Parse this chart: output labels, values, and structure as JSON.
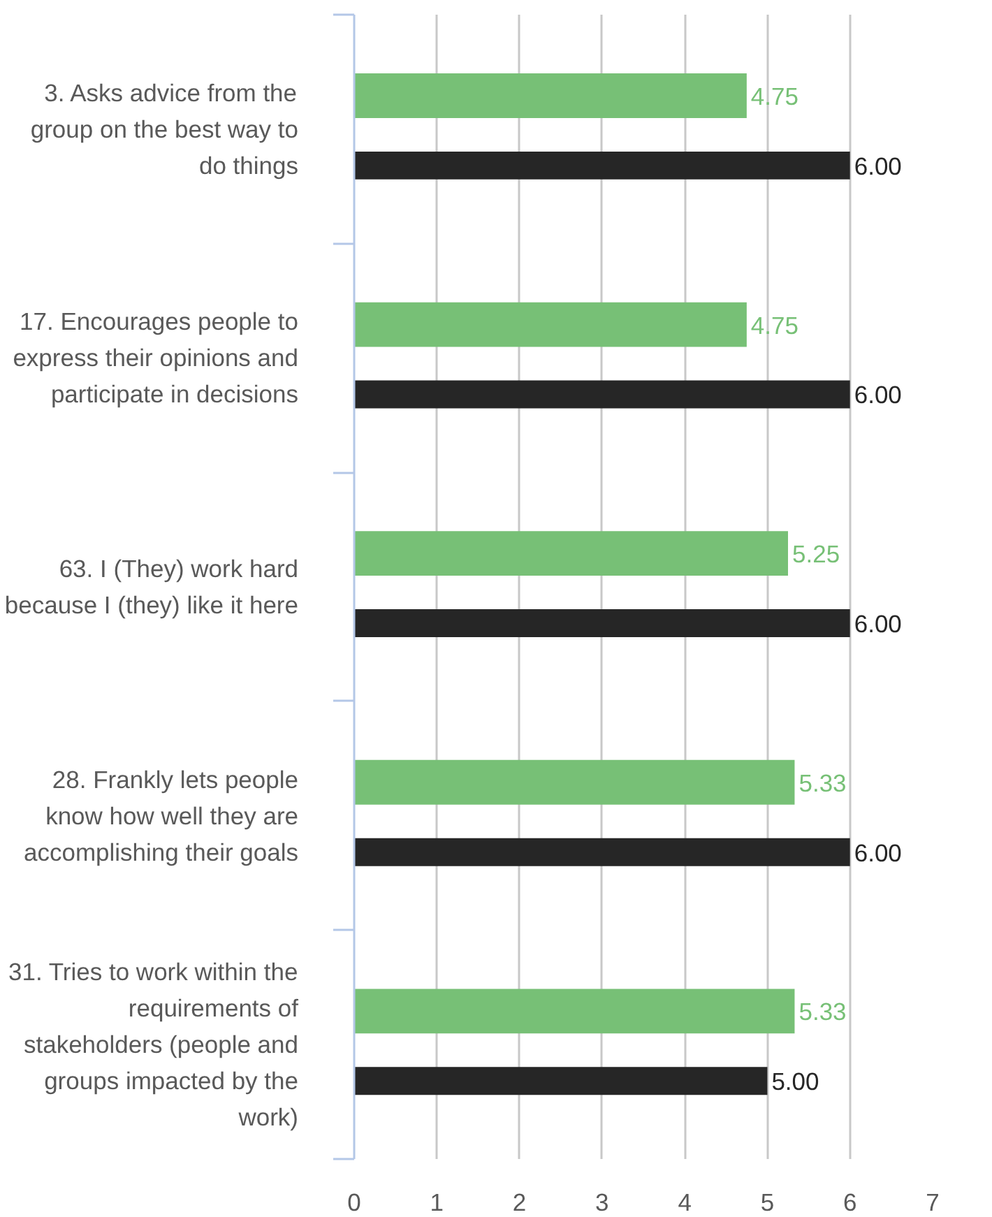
{
  "chart_data": {
    "type": "bar",
    "orientation": "horizontal",
    "categories": [
      "3. Asks advice from the group on the best way to do things",
      "17. Encourages people to express their opinions and participate in decisions",
      "63. I (They) work hard because I (they) like it here",
      "28. Frankly lets people know how well they are accomplishing their goals",
      "31. Tries to work within the requirements of stakeholders (people and groups impacted by the work)"
    ],
    "series": [
      {
        "color": "#77c076",
        "values": [
          4.75,
          4.75,
          5.25,
          5.33,
          5.33
        ],
        "value_labels": [
          "4.75",
          "4.75",
          "5.25",
          "5.33",
          "5.33"
        ]
      },
      {
        "color": "#262626",
        "values": [
          6,
          6,
          6,
          6,
          5
        ],
        "value_labels": [
          "6.00",
          "6.00",
          "6.00",
          "6.00",
          "5.00"
        ]
      }
    ],
    "xlim": [
      0,
      7
    ],
    "xticks": [
      0,
      1,
      2,
      3,
      4,
      5,
      6,
      7
    ],
    "grid": "x"
  }
}
